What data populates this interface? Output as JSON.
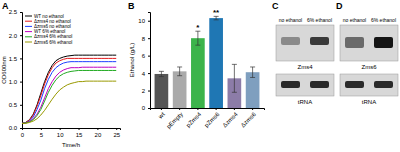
{
  "chart_data": [
    {
      "type": "line",
      "title": "A",
      "x_label": "Time/h",
      "y_label": "OD600nm",
      "x": [
        0,
        1,
        2,
        3,
        4,
        5,
        6,
        7,
        8,
        9,
        10,
        11,
        12,
        13,
        14,
        15,
        16,
        17,
        18,
        19,
        20,
        21,
        22,
        23,
        24,
        25
      ],
      "xlim": [
        0,
        26
      ],
      "xticks": [
        0,
        5,
        10,
        15,
        20,
        25
      ],
      "ylim": [
        0,
        2.5
      ],
      "yticks": [
        {
          "value": 0,
          "label": "0.0"
        },
        0.5,
        {
          "value": 1,
          "label": "1.0"
        },
        1.5,
        {
          "value": 2,
          "label": "2.0"
        },
        2.5
      ],
      "legend": "upper left",
      "series": [
        {
          "name": "WT no ethanol",
          "color": "#000000",
          "values": [
            0.1,
            0.12,
            0.18,
            0.3,
            0.5,
            0.75,
            1.0,
            1.2,
            1.35,
            1.45,
            1.5,
            1.53,
            1.55,
            1.56,
            1.57,
            1.57,
            1.57,
            1.57,
            1.57,
            1.57,
            1.57,
            1.57,
            1.57,
            1.57,
            1.57,
            1.57
          ]
        },
        {
          "name": "Δzms4 no ethanol",
          "color": "#e41a1c",
          "values": [
            0.1,
            0.12,
            0.17,
            0.28,
            0.47,
            0.7,
            0.95,
            1.15,
            1.3,
            1.4,
            1.45,
            1.48,
            1.5,
            1.5,
            1.5,
            1.5,
            1.5,
            1.5,
            1.5,
            1.5,
            1.5,
            1.5,
            1.5,
            1.5,
            1.5,
            1.5
          ]
        },
        {
          "name": "Δzms6 no ethanol",
          "color": "#1f3fff",
          "values": [
            0.1,
            0.11,
            0.15,
            0.24,
            0.4,
            0.6,
            0.85,
            1.05,
            1.2,
            1.3,
            1.36,
            1.4,
            1.42,
            1.43,
            1.43,
            1.43,
            1.43,
            1.43,
            1.43,
            1.43,
            1.43,
            1.43,
            1.43,
            1.43,
            1.43,
            1.43
          ]
        },
        {
          "name": "WT 6% ethanol",
          "color": "#c000c0",
          "values": [
            0.1,
            0.11,
            0.14,
            0.2,
            0.3,
            0.45,
            0.65,
            0.85,
            1.0,
            1.12,
            1.2,
            1.25,
            1.28,
            1.3,
            1.3,
            1.3,
            1.31,
            1.31,
            1.31,
            1.31,
            1.31,
            1.31,
            1.31,
            1.31,
            1.31,
            1.31
          ]
        },
        {
          "name": "Δzms4 6% ethanol",
          "color": "#22aa22",
          "values": [
            0.1,
            0.11,
            0.13,
            0.18,
            0.27,
            0.4,
            0.58,
            0.77,
            0.92,
            1.04,
            1.12,
            1.17,
            1.2,
            1.22,
            1.23,
            1.24,
            1.24,
            1.24,
            1.24,
            1.24,
            1.24,
            1.24,
            1.24,
            1.24,
            1.24,
            1.24
          ]
        },
        {
          "name": "Δzms6 6% ethanol",
          "color": "#999900",
          "values": [
            0.1,
            0.1,
            0.12,
            0.15,
            0.2,
            0.28,
            0.38,
            0.5,
            0.62,
            0.73,
            0.82,
            0.88,
            0.93,
            0.96,
            0.98,
            1.0,
            1.0,
            1.01,
            1.01,
            1.01,
            1.01,
            1.01,
            1.01,
            1.01,
            1.01,
            1.01
          ]
        }
      ]
    },
    {
      "type": "bar",
      "title": "B",
      "y_label": "Ethanol (g/L)",
      "categories": [
        "wt",
        "pEmpty",
        "pZms4",
        "pZms6",
        "Δzms4",
        "Δzms6"
      ],
      "values": [
        3.9,
        4.2,
        8.0,
        10.3,
        3.4,
        4.1
      ],
      "errors": [
        0.3,
        0.5,
        0.8,
        0.2,
        1.6,
        0.6
      ],
      "colors": [
        "#555555",
        "#aaaaaa",
        "#3cb44b",
        "#1f77b4",
        "#8c7ca8",
        "#7f9fbf"
      ],
      "ylim": [
        0,
        11
      ],
      "yticks": [
        0,
        2,
        4,
        6,
        8,
        10
      ],
      "annotations": [
        {
          "text": "*",
          "category": "pZms4"
        },
        {
          "text": "**",
          "category": "pZms6"
        }
      ]
    }
  ],
  "blots": [
    {
      "label": "C",
      "columns": [
        "no ethanol",
        "6% ethanol"
      ],
      "rows": [
        "Zms4",
        "tRNA"
      ]
    },
    {
      "label": "D",
      "columns": [
        "no ethanol",
        "6% ethanol"
      ],
      "rows": [
        "Zms6",
        "tRNA"
      ]
    }
  ]
}
